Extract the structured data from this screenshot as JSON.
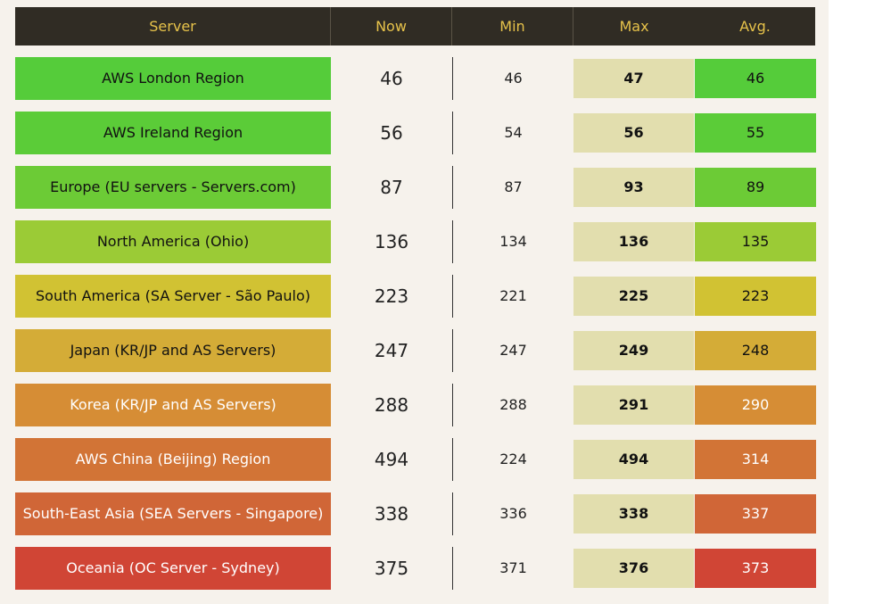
{
  "headers": {
    "server": "Server",
    "now": "Now",
    "min": "Min",
    "max": "Max",
    "avg": "Avg."
  },
  "rows": [
    {
      "server": "AWS London Region",
      "now": "46",
      "min": "46",
      "max": "47",
      "avg": "46",
      "color": "#55cc3a",
      "text_color": "#111111"
    },
    {
      "server": "AWS Ireland Region",
      "now": "56",
      "min": "54",
      "max": "56",
      "avg": "55",
      "color": "#5bcc38",
      "text_color": "#111111"
    },
    {
      "server": "Europe (EU servers - Servers.com)",
      "now": "87",
      "min": "87",
      "max": "93",
      "avg": "89",
      "color": "#6ccb36",
      "text_color": "#111111"
    },
    {
      "server": "North America (Ohio)",
      "now": "136",
      "min": "134",
      "max": "136",
      "avg": "135",
      "color": "#9bcb36",
      "text_color": "#111111"
    },
    {
      "server": "South America (SA Server - São Paulo)",
      "now": "223",
      "min": "221",
      "max": "225",
      "avg": "223",
      "color": "#d1c233",
      "text_color": "#111111"
    },
    {
      "server": "Japan (KR/JP and AS Servers)",
      "now": "247",
      "min": "247",
      "max": "249",
      "avg": "248",
      "color": "#d4ac37",
      "text_color": "#111111"
    },
    {
      "server": "Korea (KR/JP and AS Servers)",
      "now": "288",
      "min": "288",
      "max": "291",
      "avg": "290",
      "color": "#d68d35",
      "text_color": "#ffffff"
    },
    {
      "server": "AWS China (Beijing) Region",
      "now": "494",
      "min": "224",
      "max": "494",
      "avg": "314",
      "color": "#d27436",
      "text_color": "#ffffff"
    },
    {
      "server": "South-East Asia (SEA Servers - Singapore)",
      "now": "338",
      "min": "336",
      "max": "338",
      "avg": "337",
      "color": "#d06637",
      "text_color": "#ffffff"
    },
    {
      "server": "Oceania (OC Server - Sydney)",
      "now": "375",
      "min": "371",
      "max": "376",
      "avg": "373",
      "color": "#d04535",
      "text_color": "#ffffff"
    }
  ]
}
